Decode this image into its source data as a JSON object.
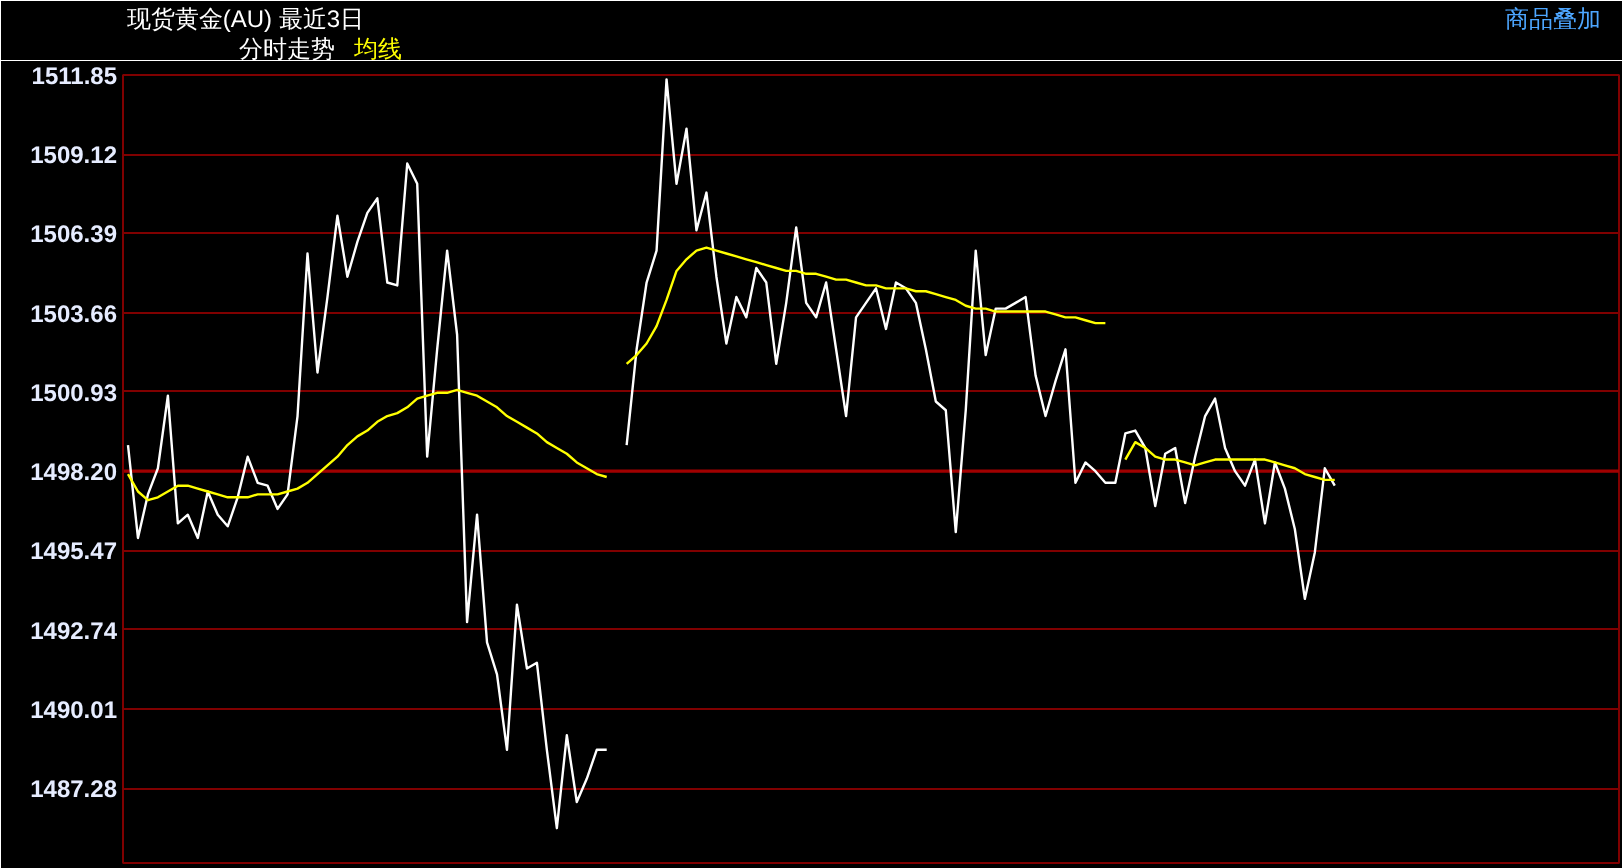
{
  "chart_data": {
    "type": "line",
    "title": "现货黄金(AU) 最近3日",
    "annotations": [
      "商品叠加"
    ],
    "categories": [
      null,
      null,
      null,
      null,
      null,
      null,
      null,
      null,
      null,
      null,
      null,
      null,
      null,
      null,
      null,
      null,
      null,
      null,
      null,
      null,
      null,
      null,
      null,
      null,
      null,
      null,
      null,
      null,
      null,
      null,
      null,
      null,
      null,
      null,
      null,
      null,
      null,
      null,
      null,
      null,
      null,
      null,
      null,
      null,
      null,
      null,
      null,
      null,
      null,
      null,
      null,
      null,
      null,
      null,
      null,
      null,
      null,
      null,
      null,
      null,
      null,
      null,
      null,
      null,
      null,
      null,
      null,
      null,
      null,
      null,
      null,
      null,
      null,
      null,
      null,
      null,
      null,
      null,
      null,
      null,
      null,
      null,
      null,
      null,
      null,
      null,
      null,
      null,
      null,
      null,
      null,
      null,
      null,
      null,
      null,
      null,
      null,
      null,
      null,
      null,
      null,
      null,
      null,
      null,
      null,
      null,
      null,
      null,
      null,
      null,
      null,
      null,
      null,
      null,
      null,
      null,
      null,
      null,
      null,
      null,
      null,
      null,
      null,
      null,
      null,
      null,
      null,
      null,
      null,
      null,
      null,
      null,
      null,
      null,
      null,
      null,
      null,
      null,
      null,
      null,
      null,
      null,
      null,
      null,
      null,
      null,
      null,
      null,
      null,
      null
    ],
    "ylim": [
      1484.7,
      1511.85
    ],
    "yticks": [
      1487.28,
      1490.01,
      1492.74,
      1495.47,
      {
        "value": 1498.2,
        "label": "1498.20"
      },
      1500.93,
      1503.66,
      1506.39,
      1509.12,
      1511.85
    ],
    "grid": "y",
    "tick_labels": "y",
    "ref_lines": [
      {
        "axis": "y",
        "value": 1498.2,
        "color": "#a00000"
      }
    ],
    "series": [
      {
        "name": "分时走势",
        "color": "#ffffff",
        "values": [
          1499.1,
          1495.9,
          1497.4,
          1498.3,
          1500.8,
          1496.4,
          1496.7,
          1495.9,
          1497.5,
          1496.7,
          1496.3,
          1497.3,
          1498.7,
          1497.8,
          1497.7,
          1496.9,
          1497.4,
          1500.1,
          1505.7,
          1501.6,
          1504.2,
          1507.0,
          1504.9,
          1506.1,
          1507.1,
          1507.6,
          1504.7,
          1504.6,
          1508.8,
          1508.1,
          1498.7,
          1502.4,
          1505.8,
          1502.9,
          1493.0,
          1496.7,
          1492.3,
          1491.2,
          1488.6,
          1493.6,
          1491.4,
          1491.6,
          1488.6,
          1485.9,
          1489.1,
          1486.8,
          1487.6,
          1488.6,
          1488.6,
          null,
          1499.1,
          1502.4,
          1504.7,
          1505.8,
          1511.7,
          1508.1,
          1510.0,
          1506.5,
          1507.8,
          1504.9,
          1502.6,
          1504.2,
          1503.5,
          1505.2,
          1504.7,
          1501.9,
          1504.0,
          1506.6,
          1504.0,
          1503.5,
          1504.7,
          1502.4,
          1500.1,
          1503.5,
          1504.0,
          1504.5,
          1503.1,
          1504.7,
          1504.5,
          1504.0,
          1502.4,
          1500.6,
          1500.3,
          1496.1,
          1500.3,
          1505.8,
          1502.2,
          1503.8,
          1503.8,
          1504.0,
          1504.2,
          1501.5,
          1500.1,
          1501.3,
          1502.4,
          1497.8,
          1498.5,
          1498.2,
          1497.8,
          1497.8,
          1499.5,
          1499.6,
          1499.0,
          1497.0,
          1498.8,
          1499.0,
          1497.1,
          1498.7,
          1500.1,
          1500.7,
          1499.0,
          1498.2,
          1497.7,
          1498.6,
          1496.4,
          1498.5,
          1497.6,
          1496.2,
          1493.8,
          1495.4,
          1498.3,
          1497.7,
          null,
          null,
          null,
          null,
          null,
          null,
          null,
          null,
          null,
          null,
          null,
          null,
          null,
          null,
          null,
          null,
          null,
          null,
          null,
          null,
          null,
          null,
          null,
          null,
          null,
          null,
          null,
          null
        ]
      },
      {
        "name": "均线",
        "color": "#ffff00",
        "values": [
          1498.1,
          1497.5,
          1497.2,
          1497.3,
          1497.5,
          1497.7,
          1497.7,
          1497.6,
          1497.5,
          1497.4,
          1497.3,
          1497.3,
          1497.3,
          1497.4,
          1497.4,
          1497.4,
          1497.5,
          1497.6,
          1497.8,
          1498.1,
          1498.4,
          1498.7,
          1499.1,
          1499.4,
          1499.6,
          1499.9,
          1500.1,
          1500.2,
          1500.4,
          1500.7,
          1500.8,
          1500.9,
          1500.9,
          1501.0,
          1500.9,
          1500.8,
          1500.6,
          1500.4,
          1500.1,
          1499.9,
          1499.7,
          1499.5,
          1499.2,
          1499.0,
          1498.8,
          1498.5,
          1498.3,
          1498.1,
          1498.0,
          null,
          1501.9,
          1502.2,
          1502.6,
          1503.2,
          1504.1,
          1505.1,
          1505.5,
          1505.8,
          1505.9,
          1505.8,
          1505.7,
          1505.6,
          1505.5,
          1505.4,
          1505.3,
          1505.2,
          1505.1,
          1505.1,
          1505.0,
          1505.0,
          1504.9,
          1504.8,
          1504.8,
          1504.7,
          1504.6,
          1504.6,
          1504.5,
          1504.5,
          1504.5,
          1504.4,
          1504.4,
          1504.3,
          1504.2,
          1504.1,
          1503.9,
          1503.8,
          1503.8,
          1503.7,
          1503.7,
          1503.7,
          1503.7,
          1503.7,
          1503.7,
          1503.6,
          1503.5,
          1503.5,
          1503.4,
          1503.3,
          1503.3,
          null,
          1498.6,
          1499.2,
          1499.0,
          1498.7,
          1498.6,
          1498.6,
          1498.5,
          1498.4,
          1498.5,
          1498.6,
          1498.6,
          1498.6,
          1498.6,
          1498.6,
          1498.6,
          1498.5,
          1498.4,
          1498.3,
          1498.1,
          1498.0,
          1497.9,
          1497.9,
          null,
          null,
          null,
          null,
          null,
          null,
          null,
          null,
          null,
          null,
          null,
          null,
          null,
          null,
          null,
          null,
          null,
          null,
          null,
          null,
          null,
          null,
          null,
          null,
          null,
          null,
          null,
          null
        ]
      }
    ]
  }
}
